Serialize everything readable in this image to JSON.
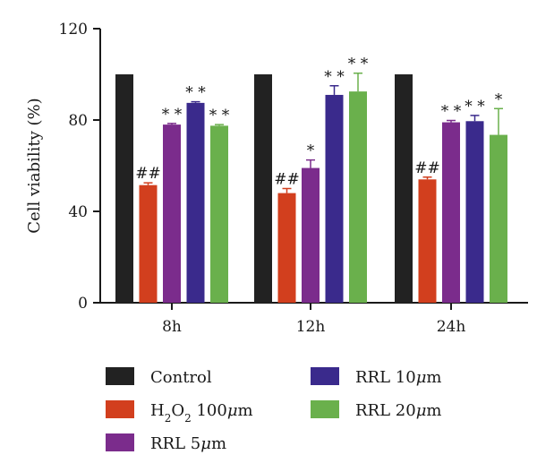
{
  "chart_data": {
    "type": "bar",
    "title": "",
    "xlabel": "",
    "ylabel": "Cell viability (%)",
    "ylim": [
      0,
      120
    ],
    "yticks": [
      0,
      40,
      80,
      120
    ],
    "categories": [
      "8h",
      "12h",
      "24h"
    ],
    "grid": false,
    "legend_position": "bottom",
    "series": [
      {
        "name": "Control",
        "color": "#222222",
        "values": [
          100,
          100,
          100
        ],
        "errors": [
          0,
          0,
          0
        ],
        "sig": [
          "",
          "",
          ""
        ]
      },
      {
        "name": "H2O2 100μm",
        "name_parts": [
          "H",
          "2",
          "O",
          "2",
          " 100",
          "μ",
          "m"
        ],
        "color": "#d23f1e",
        "values": [
          51.5,
          48,
          54
        ],
        "errors": [
          1,
          2,
          1
        ],
        "sig": [
          "##",
          "##",
          "##"
        ]
      },
      {
        "name": "RRL 5μm",
        "name_parts": [
          "RRL 5",
          "μ",
          "m"
        ],
        "color": "#7b2c8c",
        "values": [
          78,
          59,
          79
        ],
        "errors": [
          0.5,
          3.5,
          0.8
        ],
        "sig": [
          "**",
          "*",
          "**"
        ]
      },
      {
        "name": "RRL 10μm",
        "name_parts": [
          "RRL 10",
          "μ",
          "m"
        ],
        "color": "#3a2a8c",
        "values": [
          87.5,
          91,
          79.5
        ],
        "errors": [
          0.5,
          4,
          2.5
        ],
        "sig": [
          "**",
          "**",
          "**"
        ]
      },
      {
        "name": "RRL 20μm",
        "name_parts": [
          "RRL 20",
          "μ",
          "m"
        ],
        "color": "#6ab04c",
        "values": [
          77.5,
          92.5,
          73.5
        ],
        "errors": [
          0.5,
          8,
          11.5
        ],
        "sig": [
          "**",
          "**",
          "*"
        ]
      }
    ]
  }
}
